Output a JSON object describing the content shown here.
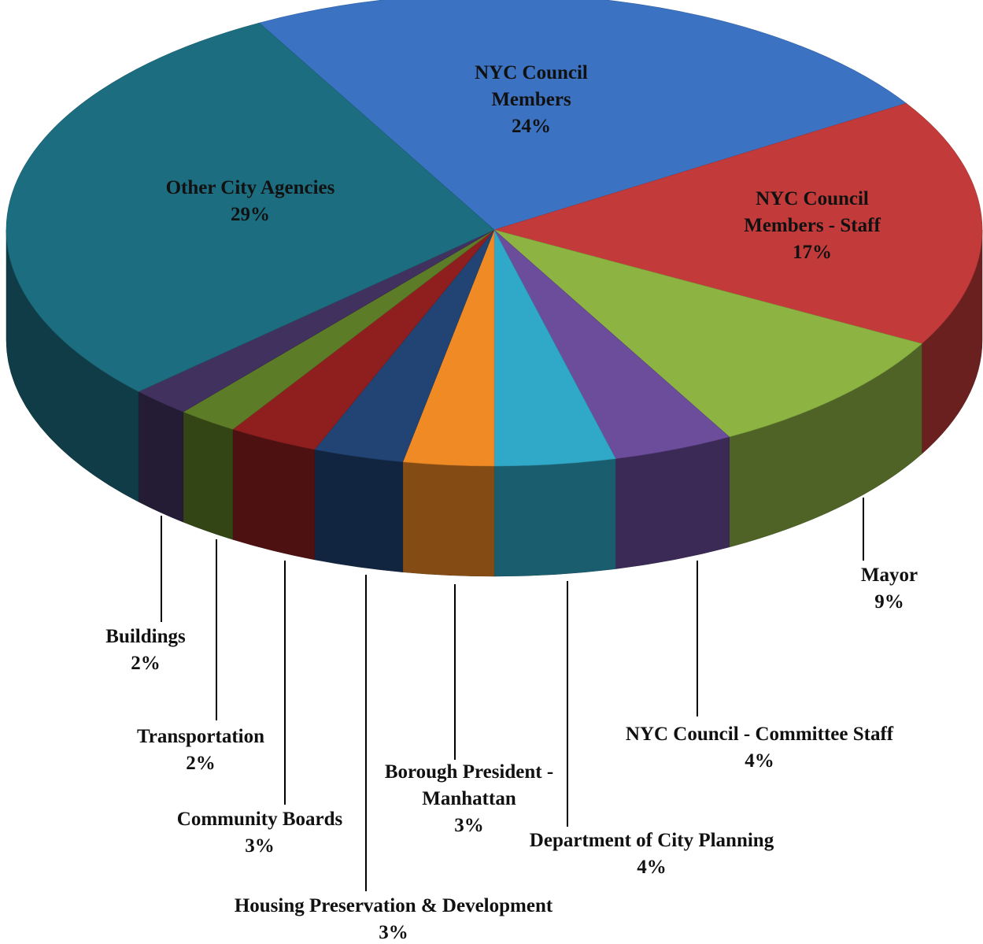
{
  "chart_data": {
    "type": "pie3d",
    "categories": [
      "NYC Council Members",
      "NYC Council Members - Staff",
      "Mayor",
      "NYC Council - Committee Staff",
      "Department of City Planning",
      "Borough President - Manhattan",
      "Housing Preservation & Development",
      "Community Boards",
      "Transportation",
      "Buildings",
      "Other City Agencies"
    ],
    "values": [
      24,
      17,
      9,
      4,
      4,
      3,
      3,
      3,
      2,
      2,
      29
    ],
    "value_labels": [
      "24%",
      "17%",
      "9%",
      "4%",
      "4%",
      "3%",
      "3%",
      "3%",
      "2%",
      "2%",
      "29%"
    ],
    "colors": [
      "#3b72c2",
      "#c23b3a",
      "#8db443",
      "#6c4d9c",
      "#30a9c8",
      "#f08a24",
      "#214474",
      "#8e1f1e",
      "#5d7c27",
      "#41315e",
      "#1c6d80"
    ]
  }
}
